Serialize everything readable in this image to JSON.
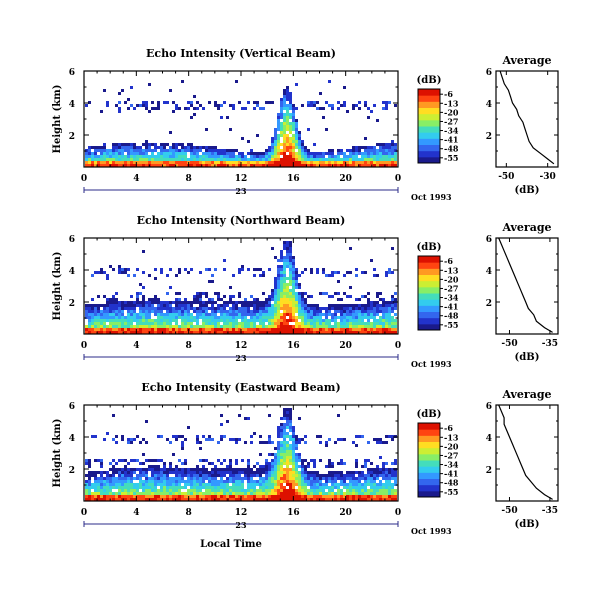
{
  "chart_data": [
    {
      "type": "heatmap",
      "title": "Echo Intensity (Vertical Beam)",
      "ylabel": "Height (km)",
      "x_ticks": [
        "0",
        "4",
        "8",
        "12",
        "16",
        "20",
        "0"
      ],
      "y_ticks": [
        "6",
        "4",
        "2"
      ],
      "xlim": [
        0,
        24
      ],
      "ylim": [
        0,
        6
      ],
      "date_labels": [
        "23",
        "Oct 1993"
      ],
      "colorbar": {
        "label": "(dB)",
        "ticks": [
          "-6",
          "-13",
          "-20",
          "-27",
          "-34",
          "-41",
          "-48",
          "-55"
        ],
        "range": [
          -59,
          -2
        ],
        "colors": [
          "#1a1a8c",
          "#2233cc",
          "#3366ee",
          "#3399ff",
          "#33ccee",
          "#44ddbb",
          "#88ee66",
          "#ccee33",
          "#ffdd22",
          "#ff9922",
          "#ff4411",
          "#dd1100"
        ]
      },
      "average_profile": {
        "title": "Average",
        "xlabel": "(dB)",
        "x_ticks": [
          "-50",
          "-30"
        ],
        "y_ticks": [
          "6",
          "4",
          "2"
        ],
        "xlim": [
          -55,
          -25
        ],
        "ylim": [
          0,
          6
        ],
        "points": [
          [
            -53,
            6.0
          ],
          [
            -52,
            5.6
          ],
          [
            -51,
            5.2
          ],
          [
            -49,
            4.8
          ],
          [
            -48,
            4.4
          ],
          [
            -47,
            4.0
          ],
          [
            -45,
            3.6
          ],
          [
            -44,
            3.2
          ],
          [
            -42,
            2.8
          ],
          [
            -41,
            2.4
          ],
          [
            -40,
            2.0
          ],
          [
            -39,
            1.6
          ],
          [
            -37,
            1.2
          ],
          [
            -33,
            0.8
          ],
          [
            -30,
            0.5
          ],
          [
            -27,
            0.2
          ]
        ]
      }
    },
    {
      "type": "heatmap",
      "title": "Echo Intensity (Northward Beam)",
      "ylabel": "Height (km)",
      "x_ticks": [
        "0",
        "4",
        "8",
        "12",
        "16",
        "20",
        "0"
      ],
      "y_ticks": [
        "6",
        "4",
        "2"
      ],
      "xlim": [
        0,
        24
      ],
      "ylim": [
        0,
        6
      ],
      "date_labels": [
        "23",
        "Oct 1993"
      ],
      "colorbar": {
        "label": "(dB)",
        "ticks": [
          "-6",
          "-13",
          "-20",
          "-27",
          "-34",
          "-41",
          "-48",
          "-55"
        ],
        "range": [
          -59,
          -2
        ],
        "colors": [
          "#1a1a8c",
          "#2233cc",
          "#3366ee",
          "#3399ff",
          "#33ccee",
          "#44ddbb",
          "#88ee66",
          "#ccee33",
          "#ffdd22",
          "#ff9922",
          "#ff4411",
          "#dd1100"
        ]
      },
      "average_profile": {
        "title": "Average",
        "xlabel": "(dB)",
        "x_ticks": [
          "-50",
          "-35"
        ],
        "y_ticks": [
          "6",
          "4",
          "2"
        ],
        "xlim": [
          -55,
          -32
        ],
        "ylim": [
          0,
          6
        ],
        "points": [
          [
            -54,
            6.0
          ],
          [
            -53,
            5.6
          ],
          [
            -52,
            5.2
          ],
          [
            -51,
            4.8
          ],
          [
            -50,
            4.4
          ],
          [
            -49,
            4.0
          ],
          [
            -48,
            3.6
          ],
          [
            -47,
            3.2
          ],
          [
            -46,
            2.8
          ],
          [
            -45,
            2.4
          ],
          [
            -44,
            2.0
          ],
          [
            -43,
            1.6
          ],
          [
            -41,
            1.2
          ],
          [
            -40,
            0.8
          ],
          [
            -37,
            0.4
          ],
          [
            -34,
            0.1
          ]
        ]
      }
    },
    {
      "type": "heatmap",
      "title": "Echo Intensity (Eastward Beam)",
      "ylabel": "Height (km)",
      "xlabel": "Local Time",
      "x_ticks": [
        "0",
        "4",
        "8",
        "12",
        "16",
        "20",
        "0"
      ],
      "y_ticks": [
        "6",
        "4",
        "2"
      ],
      "xlim": [
        0,
        24
      ],
      "ylim": [
        0,
        6
      ],
      "date_labels": [
        "23",
        "Oct 1993"
      ],
      "colorbar": {
        "label": "(dB)",
        "ticks": [
          "-6",
          "-13",
          "-20",
          "-27",
          "-34",
          "-41",
          "-48",
          "-55"
        ],
        "range": [
          -59,
          -2
        ],
        "colors": [
          "#1a1a8c",
          "#2233cc",
          "#3366ee",
          "#3399ff",
          "#33ccee",
          "#44ddbb",
          "#88ee66",
          "#ccee33",
          "#ffdd22",
          "#ff9922",
          "#ff4411",
          "#dd1100"
        ]
      },
      "average_profile": {
        "title": "Average",
        "xlabel": "(dB)",
        "x_ticks": [
          "-50",
          "-35"
        ],
        "y_ticks": [
          "6",
          "4",
          "2"
        ],
        "xlim": [
          -55,
          -32
        ],
        "ylim": [
          0,
          6
        ],
        "points": [
          [
            -54,
            6.0
          ],
          [
            -53,
            5.6
          ],
          [
            -52,
            5.2
          ],
          [
            -52,
            4.8
          ],
          [
            -51,
            4.4
          ],
          [
            -50,
            4.0
          ],
          [
            -49,
            3.6
          ],
          [
            -48,
            3.2
          ],
          [
            -47,
            2.8
          ],
          [
            -46,
            2.4
          ],
          [
            -45,
            2.0
          ],
          [
            -44,
            1.6
          ],
          [
            -42,
            1.2
          ],
          [
            -40,
            0.8
          ],
          [
            -37,
            0.4
          ],
          [
            -34,
            0.1
          ]
        ]
      }
    }
  ]
}
